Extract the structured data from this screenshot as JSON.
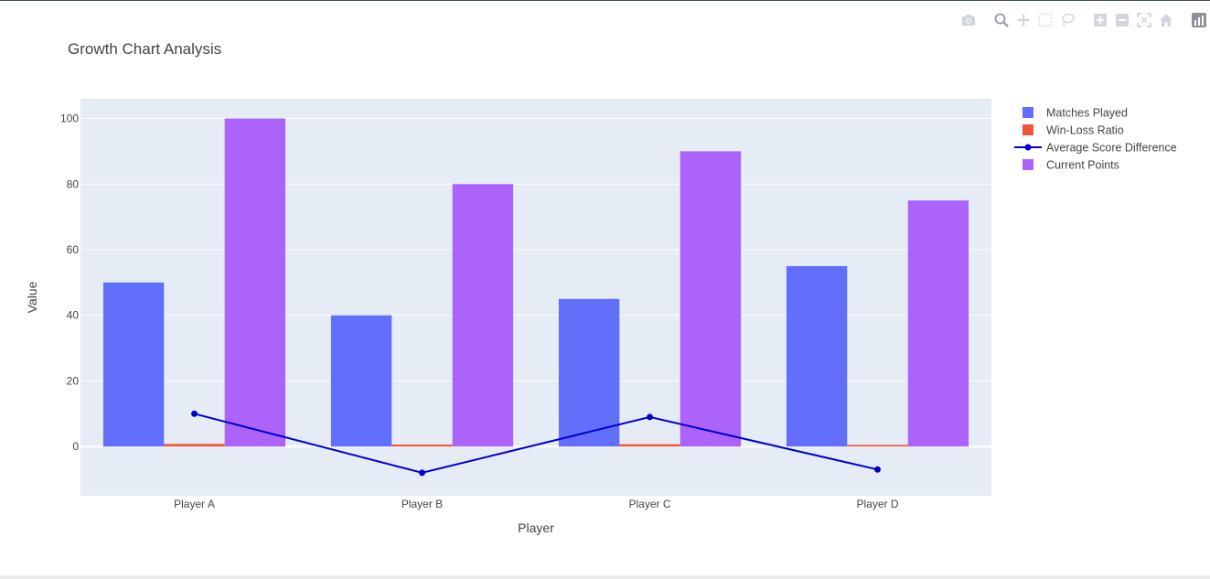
{
  "modebar": {
    "icons": [
      "camera-icon",
      "zoom-icon",
      "pan-icon",
      "box-select-icon",
      "lasso-select-icon",
      "zoom-in-icon",
      "zoom-out-icon",
      "autoscale-icon",
      "reset-axes-icon",
      "plotly-logo-icon"
    ]
  },
  "colors": {
    "plot_bg": "#e5ecf6",
    "matches_played": "#636efa",
    "win_loss_ratio": "#ef553b",
    "avg_score_diff": "#0000cd",
    "current_points": "#ab63fa"
  },
  "chart_data": {
    "type": "bar",
    "title": "Growth Chart Analysis",
    "xlabel": "Player",
    "ylabel": "Value",
    "ylim": [
      -15,
      106
    ],
    "yticks": [
      0,
      20,
      40,
      60,
      80,
      100
    ],
    "grid": true,
    "legend_position": "top-right",
    "categories": [
      "Player A",
      "Player B",
      "Player C",
      "Player D"
    ],
    "series": [
      {
        "name": "Matches Played",
        "kind": "bar",
        "values": [
          50,
          40,
          45,
          55
        ]
      },
      {
        "name": "Win-Loss Ratio",
        "kind": "bar",
        "values": [
          0.8,
          0.6,
          0.7,
          0.5
        ]
      },
      {
        "name": "Average Score Difference",
        "kind": "line+markers",
        "values": [
          10,
          -8,
          9,
          -7
        ]
      },
      {
        "name": "Current Points",
        "kind": "bar",
        "values": [
          100,
          80,
          90,
          75
        ]
      }
    ]
  }
}
